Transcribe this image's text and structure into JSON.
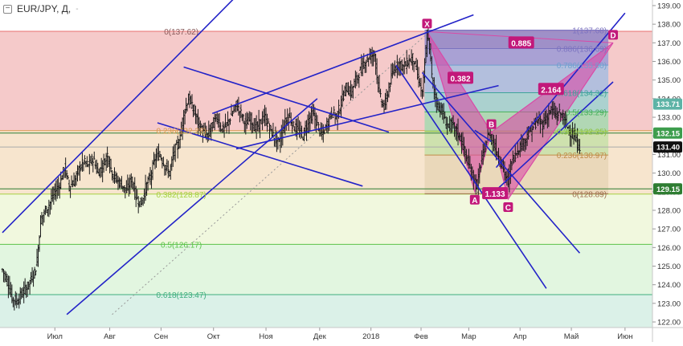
{
  "header": {
    "symbol_label": "EUR/JPY, Д,",
    "dropdown_glyph": "-"
  },
  "chart_data": {
    "type": "candlestick",
    "title": "EUR/JPY, Д,",
    "ylim": [
      121.7,
      139.3
    ],
    "yticks": [
      "139.00",
      "138.00",
      "137.00",
      "136.00",
      "135.00",
      "134.00",
      "133.00",
      "132.00",
      "131.00",
      "130.00",
      "129.00",
      "128.00",
      "127.00",
      "126.00",
      "125.00",
      "124.00",
      "123.00",
      "122.00"
    ],
    "ytick_values": [
      139,
      138,
      137,
      136,
      135,
      134,
      133,
      132,
      131,
      130,
      129,
      128,
      127,
      126,
      125,
      124,
      123,
      122
    ],
    "xticks": [
      "Июл",
      "Авг",
      "Сен",
      "Окт",
      "Ноя",
      "Дек",
      "2018",
      "Фев",
      "Мар",
      "Апр",
      "Май",
      "Июн"
    ],
    "xtick_index": [
      44,
      90,
      133,
      177,
      221,
      266,
      309,
      351,
      391,
      434,
      477,
      522
    ],
    "price_path": [
      [
        0,
        124.8
      ],
      [
        4,
        124.2
      ],
      [
        8,
        123.3
      ],
      [
        12,
        123.1
      ],
      [
        16,
        123.5
      ],
      [
        20,
        123.8
      ],
      [
        24,
        124.3
      ],
      [
        28,
        124.9
      ],
      [
        30,
        126.0
      ],
      [
        32,
        127.5
      ],
      [
        36,
        128.0
      ],
      [
        40,
        128.4
      ],
      [
        44,
        129.0
      ],
      [
        48,
        129.4
      ],
      [
        52,
        130.3
      ],
      [
        56,
        129.3
      ],
      [
        60,
        129.5
      ],
      [
        64,
        130.2
      ],
      [
        68,
        130.6
      ],
      [
        72,
        130.4
      ],
      [
        76,
        130.8
      ],
      [
        80,
        130.0
      ],
      [
        84,
        130.4
      ],
      [
        88,
        131.0
      ],
      [
        92,
        130.0
      ],
      [
        96,
        129.6
      ],
      [
        100,
        129.4
      ],
      [
        104,
        129.0
      ],
      [
        108,
        129.7
      ],
      [
        112,
        128.7
      ],
      [
        116,
        128.3
      ],
      [
        120,
        129.2
      ],
      [
        124,
        129.8
      ],
      [
        128,
        130.8
      ],
      [
        132,
        131.0
      ],
      [
        136,
        130.4
      ],
      [
        140,
        130.0
      ],
      [
        144,
        131.2
      ],
      [
        148,
        131.6
      ],
      [
        152,
        133.2
      ],
      [
        156,
        134.0
      ],
      [
        160,
        133.4
      ],
      [
        164,
        132.7
      ],
      [
        168,
        132.2
      ],
      [
        172,
        132.0
      ],
      [
        176,
        132.6
      ],
      [
        180,
        133.0
      ],
      [
        184,
        132.3
      ],
      [
        188,
        132.6
      ],
      [
        192,
        133.1
      ],
      [
        196,
        133.7
      ],
      [
        200,
        133.2
      ],
      [
        204,
        132.6
      ],
      [
        208,
        132.9
      ],
      [
        212,
        132.4
      ],
      [
        216,
        132.7
      ],
      [
        220,
        133.0
      ],
      [
        224,
        132.4
      ],
      [
        228,
        131.9
      ],
      [
        232,
        131.6
      ],
      [
        236,
        132.6
      ],
      [
        240,
        133.1
      ],
      [
        244,
        132.5
      ],
      [
        248,
        132.3
      ],
      [
        252,
        132.0
      ],
      [
        256,
        132.8
      ],
      [
        260,
        133.2
      ],
      [
        264,
        132.6
      ],
      [
        268,
        132.0
      ],
      [
        272,
        132.6
      ],
      [
        276,
        133.3
      ],
      [
        280,
        133.0
      ],
      [
        284,
        133.8
      ],
      [
        288,
        134.6
      ],
      [
        292,
        134.3
      ],
      [
        296,
        135.0
      ],
      [
        300,
        135.5
      ],
      [
        304,
        136.0
      ],
      [
        308,
        136.3
      ],
      [
        312,
        136.4
      ],
      [
        316,
        134.2
      ],
      [
        320,
        133.5
      ],
      [
        324,
        134.6
      ],
      [
        328,
        135.6
      ],
      [
        332,
        135.9
      ],
      [
        336,
        135.7
      ],
      [
        340,
        136.0
      ],
      [
        344,
        136.2
      ],
      [
        348,
        135.3
      ],
      [
        352,
        134.2
      ],
      [
        356,
        137.4
      ],
      [
        358,
        136.8
      ],
      [
        360,
        135.2
      ],
      [
        364,
        133.7
      ],
      [
        368,
        133.4
      ],
      [
        372,
        132.6
      ],
      [
        376,
        132.6
      ],
      [
        380,
        132.3
      ],
      [
        384,
        131.9
      ],
      [
        388,
        131.0
      ],
      [
        392,
        130.2
      ],
      [
        396,
        129.6
      ],
      [
        398,
        129.2
      ],
      [
        400,
        130.2
      ],
      [
        404,
        131.3
      ],
      [
        408,
        132.2
      ],
      [
        410,
        131.8
      ],
      [
        414,
        131.2
      ],
      [
        418,
        130.6
      ],
      [
        422,
        129.8
      ],
      [
        424,
        129.5
      ],
      [
        426,
        130.4
      ],
      [
        428,
        130.8
      ],
      [
        432,
        131.3
      ],
      [
        436,
        131.6
      ],
      [
        440,
        132.0
      ],
      [
        444,
        132.4
      ],
      [
        448,
        132.8
      ],
      [
        452,
        132.6
      ],
      [
        456,
        133.0
      ],
      [
        460,
        133.4
      ],
      [
        464,
        133.1
      ],
      [
        468,
        133.2
      ],
      [
        472,
        132.7
      ],
      [
        476,
        132.2
      ],
      [
        480,
        131.8
      ],
      [
        484,
        131.4
      ]
    ],
    "fibonacci_left": {
      "x_index_range": [
        0,
        354
      ],
      "levels": [
        {
          "label": "0(137.62)",
          "value": 137.62,
          "fill": "#ec9e9e",
          "line": "#e87070"
        },
        {
          "label": "0.236(132.28)",
          "value": 132.28,
          "fill": "#f0cfa6",
          "line": "#d99a50"
        },
        {
          "label": "0.382(128.87)",
          "value": 128.87,
          "fill": "#e6f2c2",
          "line": "#a8d040"
        },
        {
          "label": "0.5(126.17)",
          "value": 126.17,
          "fill": "#cbeec6",
          "line": "#5cc24a"
        },
        {
          "label": "0.618(123.47)",
          "value": 123.47,
          "fill": "#bee6d6",
          "line": "#3fae7e"
        },
        {
          "label": "",
          "value": 121.7,
          "fill": "#c8dced",
          "line": "#7aa8d0"
        }
      ]
    },
    "fibonacci_right": {
      "x_index_range": [
        354,
        508
      ],
      "levels": [
        {
          "label": "1(137.68)",
          "value": 137.68,
          "fill": "#8f86c8",
          "line": "#7c73c0"
        },
        {
          "label": "0.886(136.69)",
          "value": 136.69,
          "fill": "#9b9ad6",
          "line": "#7c73c0"
        },
        {
          "label": "0.786(135.80)",
          "value": 135.8,
          "fill": "#a7bde0",
          "line": "#6f9fd0"
        },
        {
          "label": "0.618(134.32)",
          "value": 134.32,
          "fill": "#9ed2d0",
          "line": "#3da39a"
        },
        {
          "label": "0.5(133.29)",
          "value": 133.29,
          "fill": "#a5d9b0",
          "line": "#45b05a"
        },
        {
          "label": "0.382(132.25)",
          "value": 132.25,
          "fill": "#c7e0a8",
          "line": "#8dc43e"
        },
        {
          "label": "0.236(130.97)",
          "value": 130.97,
          "fill": "#e8d6b6",
          "line": "#c08b47"
        },
        {
          "label": "0(128.89)",
          "value": 128.89,
          "fill": "#e3c9b2",
          "line": "#a07050"
        }
      ]
    },
    "pattern": {
      "points": {
        "X": [
          356,
          137.6
        ],
        "A": [
          396,
          129.0
        ],
        "B": [
          410,
          132.2
        ],
        "C": [
          424,
          128.6
        ],
        "D": [
          512,
          137.0
        ]
      },
      "ratios": [
        {
          "label": "0.382",
          "at": [
            384,
            135.1
          ]
        },
        {
          "label": "1.133",
          "at": [
            413,
            128.9
          ]
        },
        {
          "label": "2.164",
          "at": [
            460,
            134.5
          ]
        },
        {
          "label": "0.885",
          "at": [
            435,
            137.0
          ]
        }
      ],
      "fill": "#d94aa6",
      "marker_color": "#c2187a"
    },
    "price_badges": [
      {
        "label": "133.71",
        "value": 133.71,
        "bg": "#5db3a6",
        "fg": "#ffffff"
      },
      {
        "label": "132.15",
        "value": 132.15,
        "bg": "#3d9d4d",
        "fg": "#ffffff"
      },
      {
        "label": "131.40",
        "value": 131.4,
        "bg": "#111111",
        "fg": "#ffffff"
      },
      {
        "label": "129.15",
        "value": 129.15,
        "bg": "#2e7d32",
        "fg": "#ffffff"
      }
    ],
    "trendlines": [
      [
        [
          0,
          126.8
        ],
        [
          196,
          139.5
        ]
      ],
      [
        [
          54,
          122.4
        ],
        [
          264,
          134.0
        ]
      ],
      [
        [
          152,
          135.7
        ],
        [
          324,
          132.2
        ]
      ],
      [
        [
          130,
          132.7
        ],
        [
          302,
          129.3
        ]
      ],
      [
        [
          196,
          131.3
        ],
        [
          416,
          134.7
        ]
      ],
      [
        [
          176,
          133.2
        ],
        [
          395,
          138.5
        ]
      ],
      [
        [
          330,
          135.8
        ],
        [
          456,
          123.8
        ]
      ],
      [
        [
          352,
          135.4
        ],
        [
          484,
          125.7
        ]
      ],
      [
        [
          414,
          130.3
        ],
        [
          522,
          138.6
        ]
      ],
      [
        [
          416,
          129.2
        ],
        [
          512,
          134.9
        ]
      ],
      [
        [
          396,
          132.3
        ],
        [
          410,
          131.7
        ]
      ]
    ],
    "dotted_line": [
      [
        92,
        122.4
      ],
      [
        358,
        137.6
      ]
    ],
    "horizontal_lines": [
      {
        "value": 131.4,
        "color": "#aaaaaa"
      },
      {
        "value": 132.15,
        "color": "#2e7d32"
      },
      {
        "value": 129.15,
        "color": "#2e7d32"
      }
    ],
    "colors": {
      "candle": "#1a1a1a",
      "trendline": "#2323c8",
      "axis_text": "#333333",
      "axis_line": "#c8c8c8"
    }
  }
}
